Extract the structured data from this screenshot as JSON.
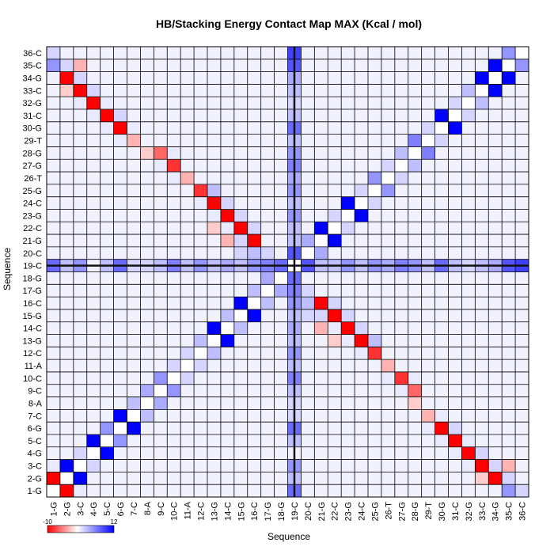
{
  "chart_data": {
    "type": "heatmap",
    "title": "HB/Stacking Energy Contact Map MAX (Kcal / mol)",
    "xlabel": "Sequence",
    "ylabel": "Sequence",
    "labels": [
      "1-G",
      "2-G",
      "3-C",
      "4-G",
      "5-C",
      "6-G",
      "7-C",
      "8-A",
      "9-C",
      "10-C",
      "11-A",
      "12-C",
      "13-G",
      "14-C",
      "15-G",
      "16-C",
      "17-G",
      "18-G",
      "19-C",
      "20-C",
      "21-G",
      "22-C",
      "23-G",
      "24-C",
      "25-G",
      "26-T",
      "27-G",
      "28-G",
      "29-T",
      "30-G",
      "31-C",
      "32-G",
      "33-C",
      "34-G",
      "35-C",
      "36-C"
    ],
    "colorbar": {
      "min": -10,
      "max": 12,
      "min_label": "-10",
      "max_label": "12",
      "low_color": "#ff0000",
      "mid_color": "#ffffff",
      "high_color": "#0000ff"
    },
    "divider_residue": "19-C",
    "grid": true,
    "values_note_unused": "",
    "cells": [
      [
        1,
        2,
        -10
      ],
      [
        2,
        1,
        -10
      ],
      [
        1,
        3,
        1
      ],
      [
        3,
        1,
        1
      ],
      [
        1,
        19,
        7
      ],
      [
        19,
        1,
        7
      ],
      [
        1,
        35,
        5
      ],
      [
        35,
        1,
        5
      ],
      [
        1,
        36,
        2
      ],
      [
        36,
        1,
        2
      ],
      [
        2,
        3,
        12
      ],
      [
        3,
        2,
        12
      ],
      [
        2,
        34,
        -10
      ],
      [
        34,
        2,
        -10
      ],
      [
        2,
        35,
        2
      ],
      [
        35,
        2,
        2
      ],
      [
        2,
        33,
        -2
      ],
      [
        33,
        2,
        -2
      ],
      [
        2,
        19,
        3
      ],
      [
        19,
        2,
        3
      ],
      [
        3,
        4,
        2
      ],
      [
        4,
        3,
        2
      ],
      [
        3,
        33,
        -10
      ],
      [
        33,
        3,
        -10
      ],
      [
        3,
        34,
        2
      ],
      [
        34,
        3,
        2
      ],
      [
        3,
        32,
        1
      ],
      [
        32,
        3,
        1
      ],
      [
        3,
        35,
        -3
      ],
      [
        35,
        3,
        -3
      ],
      [
        3,
        19,
        5
      ],
      [
        19,
        3,
        5
      ],
      [
        4,
        5,
        12
      ],
      [
        5,
        4,
        12
      ],
      [
        4,
        32,
        -10
      ],
      [
        32,
        4,
        -10
      ],
      [
        4,
        33,
        2
      ],
      [
        33,
        4,
        2
      ],
      [
        4,
        31,
        1
      ],
      [
        31,
        4,
        1
      ],
      [
        5,
        6,
        5
      ],
      [
        6,
        5,
        5
      ],
      [
        5,
        31,
        -10
      ],
      [
        31,
        5,
        -10
      ],
      [
        5,
        32,
        1
      ],
      [
        32,
        5,
        1
      ],
      [
        5,
        30,
        1
      ],
      [
        30,
        5,
        1
      ],
      [
        5,
        19,
        3
      ],
      [
        19,
        5,
        3
      ],
      [
        6,
        7,
        12
      ],
      [
        7,
        6,
        12
      ],
      [
        6,
        30,
        -10
      ],
      [
        30,
        6,
        -10
      ],
      [
        6,
        31,
        2
      ],
      [
        31,
        6,
        2
      ],
      [
        6,
        19,
        7
      ],
      [
        19,
        6,
        7
      ],
      [
        6,
        29,
        1
      ],
      [
        29,
        6,
        1
      ],
      [
        7,
        8,
        3
      ],
      [
        8,
        7,
        3
      ],
      [
        7,
        29,
        -3
      ],
      [
        29,
        7,
        -3
      ],
      [
        7,
        30,
        1
      ],
      [
        30,
        7,
        1
      ],
      [
        7,
        19,
        2
      ],
      [
        19,
        7,
        2
      ],
      [
        8,
        9,
        4
      ],
      [
        9,
        8,
        4
      ],
      [
        8,
        28,
        -2
      ],
      [
        28,
        8,
        -2
      ],
      [
        8,
        19,
        2
      ],
      [
        19,
        8,
        2
      ],
      [
        9,
        10,
        5
      ],
      [
        10,
        9,
        5
      ],
      [
        9,
        28,
        -6
      ],
      [
        28,
        9,
        -6
      ],
      [
        9,
        19,
        3
      ],
      [
        19,
        9,
        3
      ],
      [
        9,
        27,
        1
      ],
      [
        27,
        9,
        1
      ],
      [
        10,
        11,
        2
      ],
      [
        11,
        10,
        2
      ],
      [
        10,
        27,
        -8
      ],
      [
        27,
        10,
        -8
      ],
      [
        10,
        28,
        1
      ],
      [
        28,
        10,
        1
      ],
      [
        10,
        19,
        6
      ],
      [
        19,
        10,
        6
      ],
      [
        10,
        26,
        1
      ],
      [
        26,
        10,
        1
      ],
      [
        11,
        12,
        2
      ],
      [
        12,
        11,
        2
      ],
      [
        11,
        26,
        -3
      ],
      [
        26,
        11,
        -3
      ],
      [
        11,
        19,
        3
      ],
      [
        19,
        11,
        3
      ],
      [
        12,
        13,
        3
      ],
      [
        13,
        12,
        3
      ],
      [
        12,
        25,
        -8
      ],
      [
        25,
        12,
        -8
      ],
      [
        12,
        19,
        5
      ],
      [
        19,
        12,
        5
      ],
      [
        12,
        24,
        1
      ],
      [
        24,
        12,
        1
      ],
      [
        13,
        14,
        12
      ],
      [
        14,
        13,
        12
      ],
      [
        13,
        24,
        -10
      ],
      [
        24,
        13,
        -10
      ],
      [
        13,
        25,
        3
      ],
      [
        25,
        13,
        3
      ],
      [
        13,
        23,
        1
      ],
      [
        23,
        13,
        1
      ],
      [
        13,
        19,
        3
      ],
      [
        19,
        13,
        3
      ],
      [
        13,
        22,
        -2
      ],
      [
        22,
        13,
        -2
      ],
      [
        14,
        15,
        3
      ],
      [
        15,
        14,
        3
      ],
      [
        14,
        23,
        -10
      ],
      [
        23,
        14,
        -10
      ],
      [
        14,
        24,
        2
      ],
      [
        24,
        14,
        2
      ],
      [
        14,
        22,
        1
      ],
      [
        22,
        14,
        1
      ],
      [
        14,
        19,
        4
      ],
      [
        19,
        14,
        4
      ],
      [
        14,
        21,
        -3
      ],
      [
        21,
        14,
        -3
      ],
      [
        15,
        16,
        12
      ],
      [
        16,
        15,
        12
      ],
      [
        15,
        22,
        -10
      ],
      [
        22,
        15,
        -10
      ],
      [
        15,
        23,
        2
      ],
      [
        23,
        15,
        2
      ],
      [
        15,
        21,
        2
      ],
      [
        21,
        15,
        2
      ],
      [
        15,
        19,
        3
      ],
      [
        19,
        15,
        3
      ],
      [
        15,
        20,
        2
      ],
      [
        20,
        15,
        2
      ],
      [
        16,
        17,
        3
      ],
      [
        17,
        16,
        3
      ],
      [
        16,
        21,
        -10
      ],
      [
        21,
        16,
        -10
      ],
      [
        16,
        22,
        2
      ],
      [
        22,
        16,
        2
      ],
      [
        16,
        20,
        3
      ],
      [
        20,
        16,
        3
      ],
      [
        16,
        19,
        5
      ],
      [
        19,
        16,
        5
      ],
      [
        17,
        18,
        4
      ],
      [
        18,
        17,
        4
      ],
      [
        17,
        19,
        6
      ],
      [
        19,
        17,
        6
      ],
      [
        17,
        20,
        2
      ],
      [
        20,
        17,
        2
      ],
      [
        18,
        19,
        7
      ],
      [
        19,
        18,
        7
      ],
      [
        19,
        20,
        8
      ],
      [
        20,
        19,
        8
      ],
      [
        19,
        21,
        3
      ],
      [
        21,
        19,
        3
      ],
      [
        19,
        22,
        3
      ],
      [
        22,
        19,
        3
      ],
      [
        19,
        23,
        5
      ],
      [
        23,
        19,
        5
      ],
      [
        19,
        24,
        3
      ],
      [
        24,
        19,
        3
      ],
      [
        19,
        25,
        5
      ],
      [
        25,
        19,
        5
      ],
      [
        19,
        26,
        4
      ],
      [
        26,
        19,
        4
      ],
      [
        19,
        27,
        6
      ],
      [
        27,
        19,
        6
      ],
      [
        19,
        28,
        5
      ],
      [
        28,
        19,
        5
      ],
      [
        19,
        29,
        3
      ],
      [
        29,
        19,
        3
      ],
      [
        19,
        30,
        7
      ],
      [
        30,
        19,
        7
      ],
      [
        19,
        31,
        3
      ],
      [
        31,
        19,
        3
      ],
      [
        19,
        32,
        2
      ],
      [
        32,
        19,
        2
      ],
      [
        19,
        33,
        3
      ],
      [
        33,
        19,
        3
      ],
      [
        19,
        34,
        4
      ],
      [
        34,
        19,
        4
      ],
      [
        19,
        35,
        8
      ],
      [
        35,
        19,
        8
      ],
      [
        19,
        36,
        9
      ],
      [
        36,
        19,
        9
      ],
      [
        20,
        21,
        4
      ],
      [
        21,
        20,
        4
      ],
      [
        21,
        22,
        12
      ],
      [
        22,
        21,
        12
      ],
      [
        22,
        23,
        2
      ],
      [
        23,
        22,
        2
      ],
      [
        23,
        24,
        12
      ],
      [
        24,
        23,
        12
      ],
      [
        24,
        25,
        2
      ],
      [
        25,
        24,
        2
      ],
      [
        25,
        26,
        5
      ],
      [
        26,
        25,
        5
      ],
      [
        26,
        27,
        2
      ],
      [
        27,
        26,
        2
      ],
      [
        27,
        28,
        3
      ],
      [
        28,
        27,
        3
      ],
      [
        28,
        29,
        6
      ],
      [
        29,
        28,
        6
      ],
      [
        29,
        30,
        2
      ],
      [
        30,
        29,
        2
      ],
      [
        30,
        31,
        12
      ],
      [
        31,
        30,
        12
      ],
      [
        31,
        32,
        2
      ],
      [
        32,
        31,
        2
      ],
      [
        32,
        33,
        3
      ],
      [
        33,
        32,
        3
      ],
      [
        33,
        34,
        12
      ],
      [
        34,
        33,
        12
      ],
      [
        34,
        35,
        12
      ],
      [
        35,
        34,
        12
      ],
      [
        35,
        36,
        5
      ],
      [
        36,
        35,
        5
      ]
    ]
  }
}
